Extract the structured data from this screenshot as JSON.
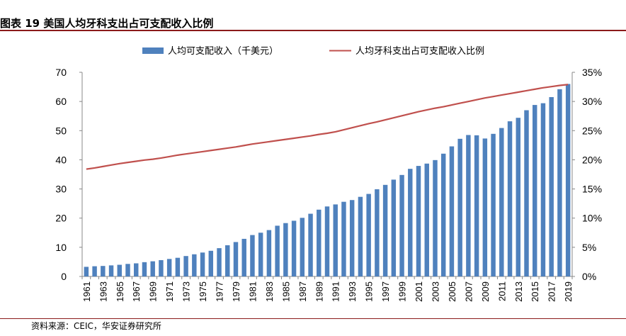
{
  "header": {
    "title": "图表 19 美国人均牙科支出占可支配收入比例"
  },
  "footer": {
    "source": "资料来源：CEIC，华安证券研究所"
  },
  "chart_data": {
    "type": "bar+line",
    "x": [
      "1961",
      "1962",
      "1963",
      "1964",
      "1965",
      "1966",
      "1967",
      "1968",
      "1969",
      "1970",
      "1971",
      "1972",
      "1973",
      "1974",
      "1975",
      "1976",
      "1977",
      "1978",
      "1979",
      "1980",
      "1981",
      "1982",
      "1983",
      "1984",
      "1985",
      "1986",
      "1987",
      "1988",
      "1989",
      "1990",
      "1991",
      "1992",
      "1993",
      "1994",
      "1995",
      "1996",
      "1997",
      "1998",
      "1999",
      "2000",
      "2001",
      "2002",
      "2003",
      "2004",
      "2005",
      "2006",
      "2007",
      "2008",
      "2009",
      "2010",
      "2011",
      "2012",
      "2013",
      "2014",
      "2015",
      "2016",
      "2017",
      "2018",
      "2019"
    ],
    "x_tick_labels": [
      "1961",
      "1963",
      "1965",
      "1967",
      "1969",
      "1971",
      "1973",
      "1975",
      "1977",
      "1979",
      "1981",
      "1983",
      "1985",
      "1987",
      "1989",
      "1991",
      "1993",
      "1995",
      "1997",
      "1999",
      "2001",
      "2003",
      "2005",
      "2007",
      "2009",
      "2011",
      "2013",
      "2015",
      "2017",
      "2019"
    ],
    "series": [
      {
        "name": "人均可支配收入（千美元）",
        "type": "bar",
        "axis": "left",
        "color": "#4f81bd",
        "values": [
          3.3,
          3.5,
          3.6,
          3.8,
          4.0,
          4.3,
          4.5,
          4.9,
          5.2,
          5.6,
          6.0,
          6.4,
          7.0,
          7.6,
          8.2,
          8.8,
          9.7,
          10.7,
          11.8,
          12.9,
          14.2,
          15.0,
          15.9,
          17.4,
          18.3,
          19.1,
          20.1,
          21.5,
          22.9,
          24.0,
          24.7,
          25.6,
          26.2,
          27.3,
          28.3,
          29.9,
          31.4,
          33.2,
          34.8,
          36.9,
          37.9,
          38.7,
          39.9,
          42.1,
          44.6,
          47.2,
          48.5,
          48.4,
          47.3,
          48.9,
          50.9,
          53.2,
          54.4,
          57.0,
          58.8,
          59.4,
          61.5,
          64.2,
          66.0
        ]
      },
      {
        "name": "人均牙科支出占可支配收入比例",
        "type": "line",
        "axis": "right",
        "color": "#c0504d",
        "values": [
          18.4,
          18.6,
          18.85,
          19.1,
          19.35,
          19.55,
          19.75,
          19.95,
          20.1,
          20.3,
          20.55,
          20.8,
          21.0,
          21.2,
          21.4,
          21.6,
          21.8,
          22.0,
          22.2,
          22.45,
          22.7,
          22.9,
          23.1,
          23.3,
          23.5,
          23.7,
          23.9,
          24.1,
          24.35,
          24.55,
          24.8,
          25.15,
          25.5,
          25.85,
          26.2,
          26.5,
          26.85,
          27.2,
          27.55,
          27.9,
          28.25,
          28.55,
          28.85,
          29.1,
          29.4,
          29.7,
          30.0,
          30.3,
          30.6,
          30.85,
          31.1,
          31.35,
          31.6,
          31.85,
          32.1,
          32.35,
          32.55,
          32.75,
          32.9
        ]
      }
    ],
    "y_left": {
      "min": 0,
      "max": 70,
      "ticks": [
        "0",
        "10",
        "20",
        "30",
        "40",
        "50",
        "60",
        "70"
      ]
    },
    "y_right": {
      "min": 0,
      "max": 35,
      "ticks": [
        "0%",
        "5%",
        "10%",
        "15%",
        "20%",
        "25%",
        "30%",
        "35%"
      ]
    },
    "legend_position": "top",
    "grid": false
  }
}
